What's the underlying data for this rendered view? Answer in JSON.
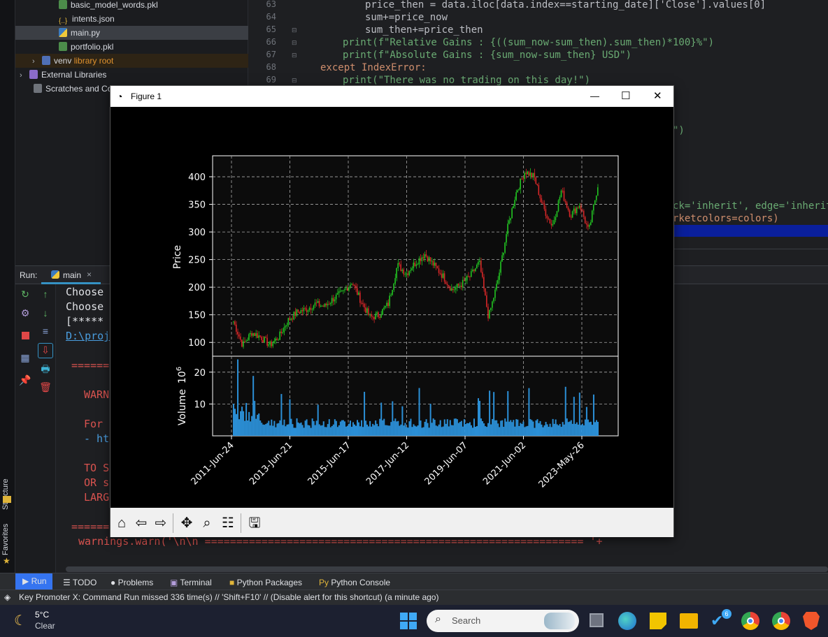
{
  "project_tree": {
    "items": [
      {
        "label": "basic_model_words.pkl",
        "icon": "pkl-file-icon"
      },
      {
        "label": "intents.json",
        "icon": "json-file-icon"
      },
      {
        "label": "main.py",
        "icon": "python-file-icon"
      },
      {
        "label": "portfolio.pkl",
        "icon": "pkl-file-icon"
      },
      {
        "label": "venv",
        "suffix": "library root",
        "icon": "folder-icon"
      },
      {
        "label": "External Libraries",
        "icon": "library-icon"
      },
      {
        "label": "Scratches and Co",
        "icon": "scratches-icon"
      }
    ]
  },
  "editor": {
    "line_numbers": [
      "63",
      "64",
      "65",
      "66",
      "67",
      "68",
      "69"
    ],
    "lines": [
      "price_then = data.iloc[data.index==starting_date]['Close'].values[0]",
      "sum+=price_now",
      "sum_then+=price_then",
      "print(f\"Relative Gains : {((sum_now-sum_then).sum_then)*100}%\")",
      "print(f\"Absolute Gains : {sum_now-sum_then} USD\")",
      "except IndexError:",
      "print(\"There was no trading on this day!\")"
    ],
    "fragment_1": "\")",
    "fragment_2": "ck='inherit', edge='inherit'",
    "fragment_3": "rketcolors=colors)"
  },
  "run_panel": {
    "label": "Run:",
    "tab": "main",
    "console_lines": [
      "Choose",
      "Choose",
      "[*****",
      "D:\\proj",
      "======",
      "WARN",
      "For",
      "- ht",
      "TO S",
      "OR s",
      "LARG",
      "======",
      "warnings.warn('\\n\\n ============================================================ '+"
    ]
  },
  "figure": {
    "title": "Figure 1",
    "minimize": "—",
    "maximize": "☐",
    "close": "✕"
  },
  "chart_data": {
    "type": "candlestick",
    "title": "",
    "ylabel": "Price",
    "volume_ylabel": "Volume  10^6",
    "volume_ylabel_main": "Volume",
    "volume_ylabel_exp": "10",
    "volume_ylabel_pow": "6",
    "ylim": [
      75,
      438
    ],
    "yticks": [
      100,
      150,
      200,
      250,
      300,
      350,
      400
    ],
    "volume_ylim": [
      0,
      25
    ],
    "volume_yticks": [
      10,
      20
    ],
    "xticks": [
      "2011-Jun-24",
      "2013-Jun-21",
      "2015-Jun-17",
      "2017-Jun-12",
      "2019-Jun-07",
      "2021-Jun-02",
      "2023-May-26"
    ],
    "grid": true,
    "up_color": "#22c322",
    "down_color": "#d62728",
    "volume_color": "#2b8fd6",
    "approx_close_path": [
      [
        "2011-Jun-24",
        138
      ],
      [
        "2011-Sep",
        95
      ],
      [
        "2011-Dec",
        118
      ],
      [
        "2012-Mar",
        110
      ],
      [
        "2012-Jun",
        95
      ],
      [
        "2012-Sep",
        110
      ],
      [
        "2013-Jan",
        140
      ],
      [
        "2013-Jun-21",
        155
      ],
      [
        "2013-Sep",
        160
      ],
      [
        "2014-Jan",
        170
      ],
      [
        "2014-Jun",
        165
      ],
      [
        "2014-Sep",
        180
      ],
      [
        "2015-Jan",
        190
      ],
      [
        "2015-Jun-17",
        210
      ],
      [
        "2015-Sep",
        175
      ],
      [
        "2016-Jan",
        145
      ],
      [
        "2016-Jun",
        150
      ],
      [
        "2016-Sep",
        170
      ],
      [
        "2017-Jan",
        240
      ],
      [
        "2017-Jun-12",
        225
      ],
      [
        "2017-Sep",
        245
      ],
      [
        "2018-Jan",
        260
      ],
      [
        "2018-Jun",
        240
      ],
      [
        "2018-Sep",
        220
      ],
      [
        "2019-Jan",
        195
      ],
      [
        "2019-Jun-07",
        205
      ],
      [
        "2019-Sep",
        220
      ],
      [
        "2020-Jan",
        245
      ],
      [
        "2020-Mar",
        145
      ],
      [
        "2020-Jun",
        210
      ],
      [
        "2020-Sep",
        300
      ],
      [
        "2021-Jan",
        370
      ],
      [
        "2021-Jun-02",
        410
      ],
      [
        "2021-Sep",
        400
      ],
      [
        "2022-Jan",
        345
      ],
      [
        "2022-Jun",
        310
      ],
      [
        "2022-Sep",
        375
      ],
      [
        "2023-Jan",
        330
      ],
      [
        "2023-May-26",
        350
      ],
      [
        "2023-Sep",
        300
      ],
      [
        "2024-Jan",
        385
      ]
    ],
    "volume_peak_labels": []
  },
  "figure_toolbar": {
    "tools": [
      "home-icon",
      "back-icon",
      "forward-icon",
      "pan-icon",
      "zoom-icon",
      "configure-icon",
      "save-icon"
    ]
  },
  "tool_tabs": {
    "run": "Run",
    "todo": "TODO",
    "problems": "Problems",
    "terminal": "Terminal",
    "packages": "Python Packages",
    "console": "Python Console"
  },
  "side_tabs": {
    "structure": "Structure",
    "favorites": "Favorites"
  },
  "status_bar": {
    "message": "Key Promoter X: Command Run missed 336 time(s) // 'Shift+F10' // (Disable alert for this shortcut) (a minute ago)"
  },
  "taskbar": {
    "temperature": "5°C",
    "weather": "Clear",
    "search_placeholder": "Search",
    "badge_count": "6"
  }
}
